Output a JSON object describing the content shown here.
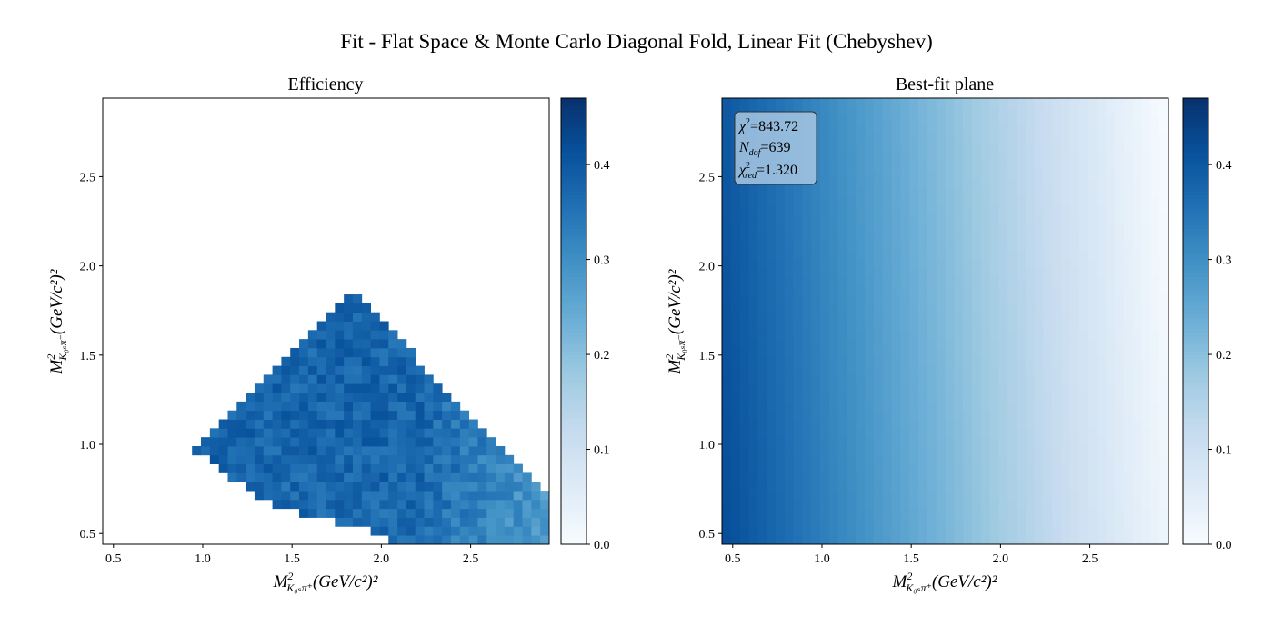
{
  "figure": {
    "suptitle": "Fit - Flat Space & Monte Carlo Diagonal Fold, Linear Fit (Chebyshev)"
  },
  "chart_data": [
    {
      "type": "heatmap",
      "title": "Efficiency",
      "xlabel_main": "M",
      "xlabel_sup": "2",
      "xlabel_sub": "K₀ₛπ⁺",
      "xlabel_unit": "(GeV/c²)²",
      "ylabel_main": "M",
      "ylabel_sup": "2",
      "ylabel_sub": "K₀ₛπ⁻",
      "ylabel_unit": "(GeV/c²)²",
      "xlim": [
        0.44,
        2.94
      ],
      "ylim": [
        0.44,
        2.94
      ],
      "x_ticks": [
        "0.5",
        "1.0",
        "1.5",
        "2.0",
        "2.5"
      ],
      "y_ticks": [
        "0.5",
        "1.0",
        "1.5",
        "2.0",
        "2.5"
      ],
      "bins": 50,
      "colormap": "Blues",
      "colorbar_range": [
        0.0,
        0.47
      ],
      "colorbar_ticks": [
        "0.0",
        "0.1",
        "0.2",
        "0.3",
        "0.4"
      ],
      "region_description": "Dalitz-allowed folded region: x >= y, lower boundary near y from 0.5 to 0.9 for x 1.0 to 2.05, upper boundary diagonal from (0.95,0.97) up to apex (1.85,1.85) down to (2.94,0.72)",
      "value_trend": "approx 0.37 at left, decreasing to ~0.27 at right-bottom corner, with noise"
    },
    {
      "type": "heatmap",
      "title": "Best-fit plane",
      "xlabel_main": "M",
      "xlabel_sup": "2",
      "xlabel_sub": "K₀ₛπ⁺",
      "xlabel_unit": "(GeV/c²)²",
      "ylabel_main": "M",
      "ylabel_sup": "2",
      "ylabel_sub": "K₀ₛπ⁻",
      "ylabel_unit": "(GeV/c²)²",
      "xlim": [
        0.44,
        2.94
      ],
      "ylim": [
        0.44,
        2.94
      ],
      "x_ticks": [
        "0.5",
        "1.0",
        "1.5",
        "2.0",
        "2.5"
      ],
      "y_ticks": [
        "0.5",
        "1.0",
        "1.5",
        "2.0",
        "2.5"
      ],
      "bins": 50,
      "colormap": "Blues",
      "colorbar_range": [
        0.0,
        0.47
      ],
      "colorbar_ticks": [
        "0.0",
        "0.1",
        "0.2",
        "0.3",
        "0.4"
      ],
      "plane": {
        "at_x_low": 0.42,
        "at_x_high": 0.02,
        "y_slope": -0.02
      },
      "annotation": {
        "chi2_label": "χ",
        "chi2_value": "=843.72",
        "ndof_label": "N",
        "ndof_sub": "dof",
        "ndof_value": "=639",
        "chi2red_label": "χ",
        "chi2red_sub": "red",
        "chi2red_value": "=1.320"
      }
    }
  ]
}
